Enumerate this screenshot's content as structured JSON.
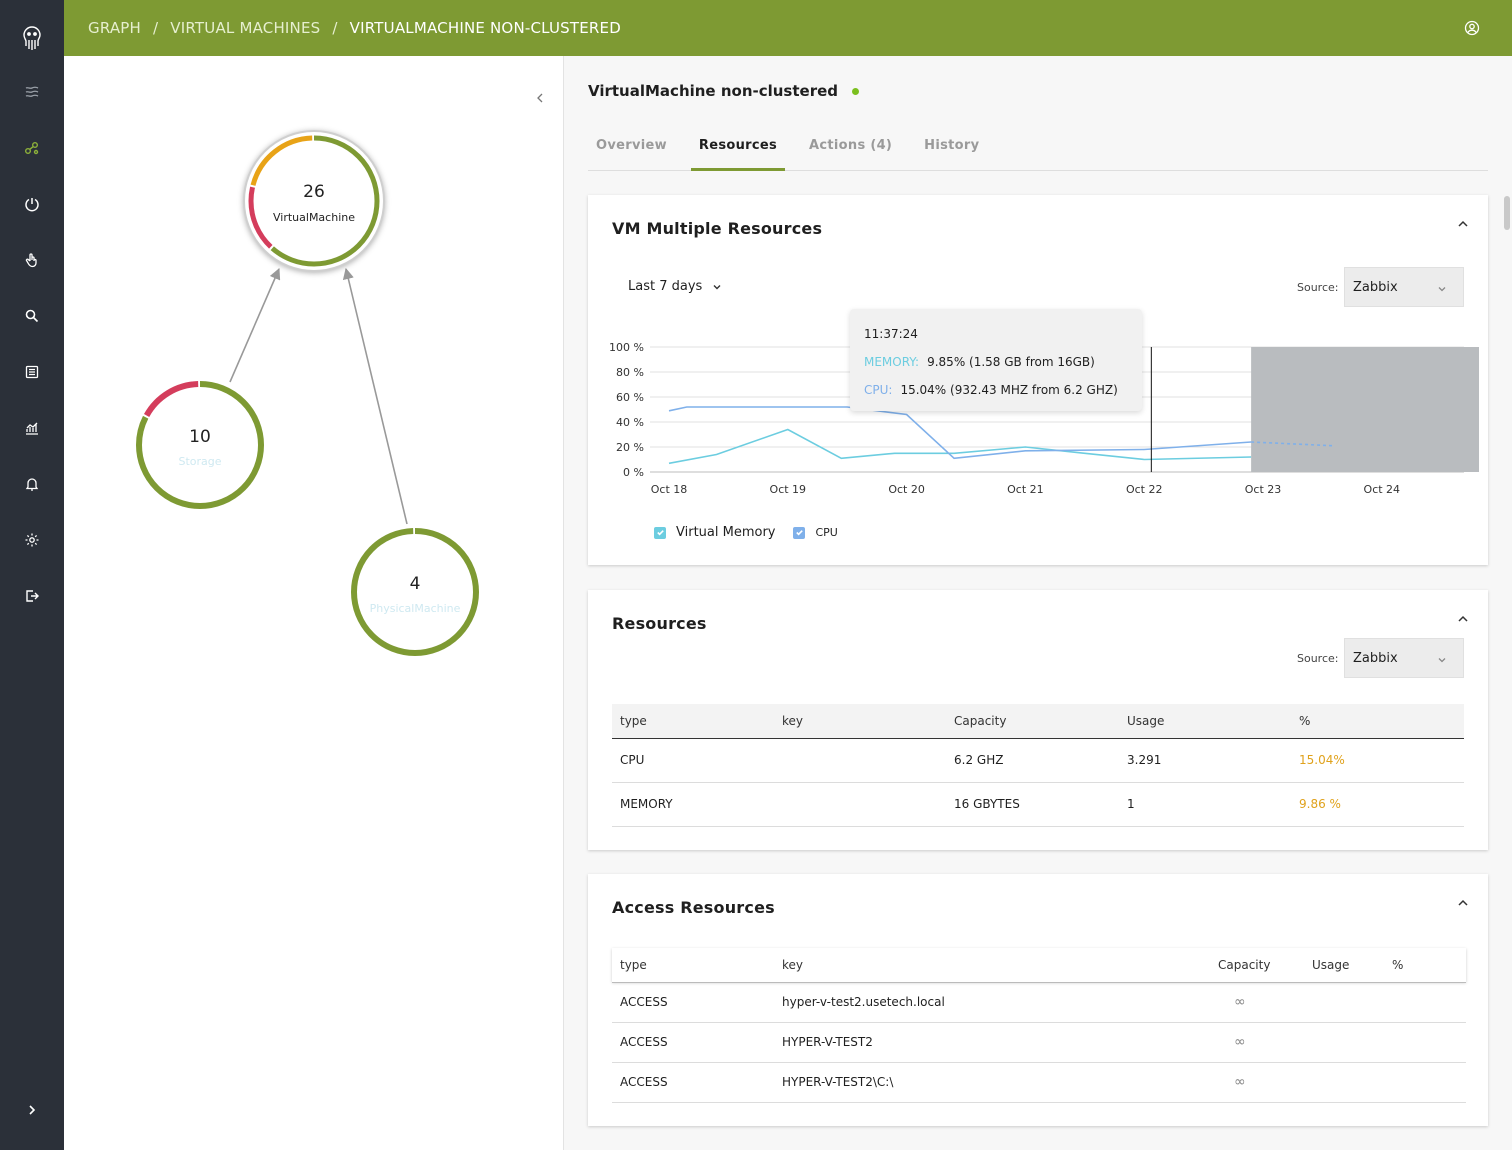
{
  "header": {
    "breadcrumbs": [
      "GRAPH",
      "VIRTUAL MACHINES",
      "VIRTUALMACHINE NON-CLUSTERED"
    ],
    "separator": "/"
  },
  "sidebar": {
    "items": [
      "logo-icon",
      "layers-icon",
      "graph-icon",
      "power-icon",
      "hand-icon",
      "search-icon",
      "list-icon",
      "chart-icon",
      "bell-icon",
      "gear-icon",
      "logout-icon",
      "expand-icon"
    ],
    "active": "graph-icon"
  },
  "graph": {
    "nodes": [
      {
        "count": "26",
        "label": "VirtualMachine",
        "segments": [
          {
            "fraction": 0.62,
            "color": "#7e9a33"
          },
          {
            "fraction": 0.17,
            "color": "#d43d5c"
          },
          {
            "fraction": 0.21,
            "color": "#e8a317"
          }
        ]
      },
      {
        "count": "10",
        "label": "Storage",
        "segments": [
          {
            "fraction": 0.83,
            "color": "#7e9a33"
          },
          {
            "fraction": 0.17,
            "color": "#d43d5c"
          }
        ]
      },
      {
        "count": "4",
        "label": "PhysicalMachine",
        "segments": [
          {
            "fraction": 1.0,
            "color": "#7e9a33"
          }
        ]
      }
    ]
  },
  "detail": {
    "title": "VirtualMachine non-clustered",
    "tabs": [
      {
        "label": "Overview",
        "active": false
      },
      {
        "label": "Resources",
        "active": true
      },
      {
        "label": "Actions (4)",
        "active": false
      },
      {
        "label": "History",
        "active": false
      }
    ]
  },
  "vm_resources": {
    "title": "VM Multiple Resources",
    "range": "Last 7 days",
    "source_label": "Source:",
    "source_value": "Zabbix",
    "tooltip": {
      "time": "11:37:24",
      "memory_key": "MEMORY:",
      "memory_value": "9.85% (1.58 GB from 16GB)",
      "cpu_key": "CPU:",
      "cpu_value": "15.04% (932.43 MHZ from 6.2 GHZ)"
    },
    "legend": [
      "Virtual Memory",
      "CPU"
    ]
  },
  "chart_data": {
    "type": "line",
    "x": [
      "Oct 18",
      "Oct 19",
      "Oct 20",
      "Oct 21",
      "Oct 22",
      "Oct 23",
      "Oct 24"
    ],
    "y_ticks": [
      "100 %",
      "80 %",
      "60 %",
      "40 %",
      "20 %",
      "0 %"
    ],
    "ylim": [
      0,
      100
    ],
    "series": [
      {
        "name": "Virtual Memory",
        "color": "#6ccde0",
        "points": [
          [
            0.0,
            7
          ],
          [
            0.4,
            14
          ],
          [
            1.0,
            34
          ],
          [
            1.45,
            11
          ],
          [
            1.9,
            15
          ],
          [
            2.4,
            15
          ],
          [
            3.0,
            20
          ],
          [
            3.5,
            15
          ],
          [
            4.0,
            10
          ],
          [
            4.9,
            12
          ]
        ]
      },
      {
        "name": "CPU",
        "color": "#7fb0ea",
        "points": [
          [
            0.0,
            49
          ],
          [
            0.15,
            52
          ],
          [
            1.0,
            52
          ],
          [
            1.5,
            52
          ],
          [
            2.0,
            46
          ],
          [
            2.4,
            11
          ],
          [
            3.0,
            17
          ],
          [
            4.0,
            18
          ],
          [
            4.9,
            24
          ]
        ]
      }
    ],
    "forecast": {
      "color": "#7fb0ea",
      "points": [
        [
          4.9,
          24
        ],
        [
          5.6,
          21
        ]
      ]
    },
    "shaded_from": 4.9,
    "cursor_x": 4.06
  },
  "resources": {
    "title": "Resources",
    "source_label": "Source:",
    "source_value": "Zabbix",
    "columns": [
      "type",
      "key",
      "Capacity",
      "Usage",
      "%"
    ],
    "rows": [
      {
        "type": "CPU",
        "key": "",
        "capacity": "6.2 GHZ",
        "usage": "3.291",
        "pct": "15.04%"
      },
      {
        "type": "MEMORY",
        "key": "",
        "capacity": "16 GBYTES",
        "usage": "1",
        "pct": "9.86 %"
      }
    ]
  },
  "access": {
    "title": "Access Resources",
    "columns": [
      "type",
      "key",
      "Capacity",
      "Usage",
      "%"
    ],
    "rows": [
      {
        "type": "ACCESS",
        "key": "hyper-v-test2.usetech.local",
        "capacity": "∞"
      },
      {
        "type": "ACCESS",
        "key": "HYPER-V-TEST2",
        "capacity": "∞"
      },
      {
        "type": "ACCESS",
        "key": "HYPER-V-TEST2\\C:\\",
        "capacity": "∞"
      }
    ]
  }
}
